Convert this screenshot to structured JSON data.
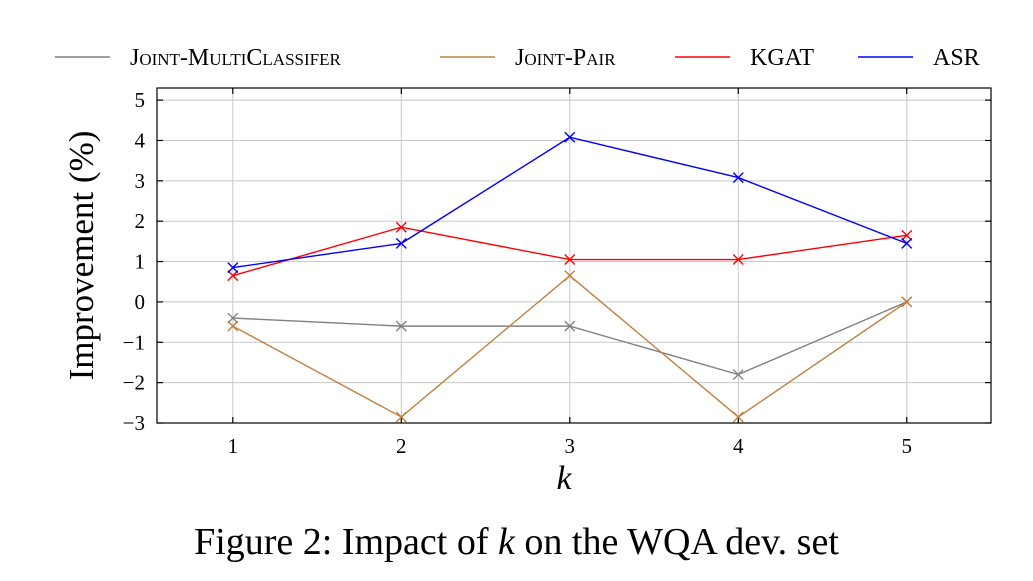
{
  "chart_data": {
    "type": "line",
    "xlabel": "k",
    "ylabel": "Improvement (%)",
    "x": [
      1,
      2,
      3,
      4,
      5
    ],
    "xlim": [
      0.55,
      5.5
    ],
    "ylim": [
      -3,
      5.3
    ],
    "yticks": [
      -3,
      -2,
      -1,
      0,
      1,
      2,
      3,
      4,
      5
    ],
    "xticks": [
      1,
      2,
      3,
      4,
      5
    ],
    "grid": true,
    "legend_position": "top",
    "series": [
      {
        "name": "Joint-MultiClassifer",
        "color": "#808080",
        "values": [
          -0.4,
          -0.6,
          -0.6,
          -1.8,
          0.0
        ]
      },
      {
        "name": "Joint-Pair",
        "color": "#bf8040",
        "values": [
          -0.6,
          -2.85,
          0.65,
          -2.85,
          0.0
        ]
      },
      {
        "name": "KGAT",
        "color": "#ff0000",
        "values": [
          0.65,
          1.85,
          1.05,
          1.05,
          1.65
        ]
      },
      {
        "name": "ASR",
        "color": "#0000ff",
        "values": [
          0.85,
          1.45,
          4.08,
          3.08,
          1.45
        ]
      }
    ]
  },
  "caption": {
    "prefix": "Figure 2: Impact of ",
    "var": "k",
    "suffix": " on the WQA dev. set"
  }
}
